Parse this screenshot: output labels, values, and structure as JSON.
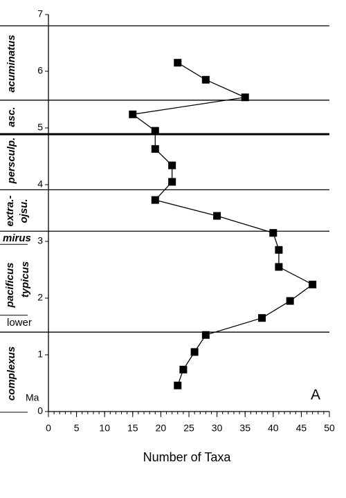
{
  "chart_data": {
    "type": "line",
    "xlabel": "Number of Taxa",
    "xlim": [
      0,
      50
    ],
    "xticks": [
      0,
      5,
      10,
      15,
      20,
      25,
      30,
      35,
      40,
      45,
      50
    ],
    "ylim": [
      0,
      7
    ],
    "yticks": [
      0,
      1,
      2,
      3,
      4,
      5,
      6,
      7
    ],
    "series": [
      {
        "color": "#000000",
        "x": [
          23,
          28,
          35,
          15,
          19,
          19,
          22,
          22,
          19,
          30,
          40,
          41,
          41,
          47,
          43,
          38,
          28,
          26,
          24,
          23
        ],
        "values": [
          6.15,
          5.85,
          5.54,
          5.24,
          4.95,
          4.63,
          4.34,
          4.05,
          3.73,
          3.45,
          3.15,
          2.85,
          2.55,
          2.24,
          1.95,
          1.65,
          1.35,
          1.05,
          0.74,
          0.46
        ]
      }
    ],
    "boundaries": [
      6.8,
      5.49,
      3.91,
      3.18,
      1.4
    ],
    "bold_boundaries": [
      4.89
    ],
    "minor_boundaries": [
      2.96,
      1.71,
      0
    ],
    "zones": [
      "acuminatus",
      "asc.",
      "persculp.",
      "extra.-",
      "ojsu.",
      "mirus",
      "pacificus",
      "typicus",
      "lower",
      "complexus"
    ],
    "unit_label": "Ma",
    "panel_label": "A"
  }
}
